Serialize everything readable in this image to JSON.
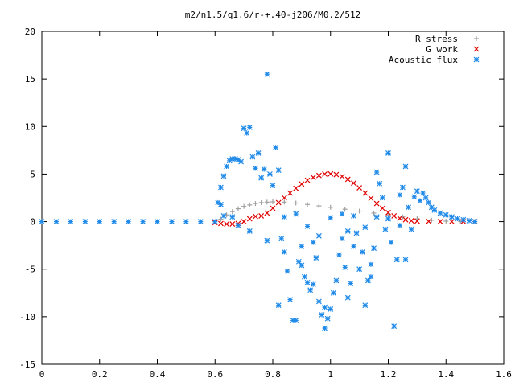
{
  "chart_data": {
    "type": "scatter",
    "title": "m2/n1.5/q1.6/r-+.40-j206/M0.2/512",
    "xlabel": "",
    "ylabel": "",
    "xlim": [
      0,
      1.6
    ],
    "ylim": [
      -15,
      20
    ],
    "xticks": [
      0,
      0.2,
      0.4,
      0.6,
      0.8,
      1,
      1.2,
      1.4,
      1.6
    ],
    "yticks": [
      -15,
      -10,
      -5,
      0,
      5,
      10,
      15,
      20
    ],
    "xtick_labels": [
      "0",
      "0.2",
      "0.4",
      "0.6",
      "0.8",
      "1",
      "1.2",
      "1.4",
      "1.6"
    ],
    "ytick_labels": [
      "-15",
      "-10",
      "-5",
      "0",
      "5",
      "10",
      "15",
      "20"
    ],
    "grid": false,
    "legend_position": "top-right",
    "series": [
      {
        "name": "R stress",
        "marker": "plus",
        "color": "#a0a0a0",
        "points": [
          [
            0.62,
            0.25
          ],
          [
            0.64,
            0.7
          ],
          [
            0.66,
            1.05
          ],
          [
            0.68,
            1.35
          ],
          [
            0.7,
            1.6
          ],
          [
            0.72,
            1.75
          ],
          [
            0.74,
            1.9
          ],
          [
            0.76,
            2.0
          ],
          [
            0.78,
            2.05
          ],
          [
            0.8,
            2.08
          ],
          [
            0.84,
            2.05
          ],
          [
            0.88,
            1.95
          ],
          [
            0.92,
            1.8
          ],
          [
            0.96,
            1.65
          ],
          [
            1.0,
            1.5
          ],
          [
            1.05,
            1.3
          ],
          [
            1.1,
            1.1
          ],
          [
            1.15,
            0.9
          ],
          [
            1.2,
            0.7
          ],
          [
            1.25,
            0.5
          ],
          [
            1.3,
            0.3
          ],
          [
            1.35,
            0.15
          ],
          [
            1.4,
            0.05
          ],
          [
            1.45,
            0.02
          ],
          [
            1.5,
            0.0
          ]
        ]
      },
      {
        "name": "G work",
        "marker": "cross",
        "color": "#e00000",
        "points": [
          [
            0.6,
            -0.1
          ],
          [
            0.62,
            -0.2
          ],
          [
            0.64,
            -0.25
          ],
          [
            0.66,
            -0.25
          ],
          [
            0.68,
            -0.2
          ],
          [
            0.7,
            0.0
          ],
          [
            0.72,
            0.3
          ],
          [
            0.74,
            0.55
          ],
          [
            0.76,
            0.6
          ],
          [
            0.78,
            0.9
          ],
          [
            0.8,
            1.4
          ],
          [
            0.82,
            2.0
          ],
          [
            0.84,
            2.5
          ],
          [
            0.86,
            3.0
          ],
          [
            0.88,
            3.5
          ],
          [
            0.9,
            3.95
          ],
          [
            0.92,
            4.35
          ],
          [
            0.94,
            4.65
          ],
          [
            0.96,
            4.85
          ],
          [
            0.98,
            5.0
          ],
          [
            1.0,
            5.02
          ],
          [
            1.02,
            4.95
          ],
          [
            1.04,
            4.75
          ],
          [
            1.06,
            4.45
          ],
          [
            1.08,
            4.05
          ],
          [
            1.1,
            3.55
          ],
          [
            1.12,
            3.0
          ],
          [
            1.14,
            2.45
          ],
          [
            1.16,
            1.9
          ],
          [
            1.18,
            1.4
          ],
          [
            1.2,
            0.95
          ],
          [
            1.22,
            0.6
          ],
          [
            1.24,
            0.35
          ],
          [
            1.26,
            0.2
          ],
          [
            1.28,
            0.1
          ],
          [
            1.3,
            0.05
          ],
          [
            1.34,
            0.02
          ],
          [
            1.38,
            0.0
          ],
          [
            1.42,
            0.0
          ],
          [
            1.46,
            0.0
          ],
          [
            1.5,
            0.0
          ]
        ]
      },
      {
        "name": "Acoustic flux",
        "marker": "star",
        "color": "#1f8ae8",
        "points": [
          [
            0.0,
            0.0
          ],
          [
            0.05,
            0.0
          ],
          [
            0.1,
            0.0
          ],
          [
            0.15,
            0.0
          ],
          [
            0.2,
            0.0
          ],
          [
            0.25,
            0.0
          ],
          [
            0.3,
            0.0
          ],
          [
            0.35,
            0.0
          ],
          [
            0.4,
            0.0
          ],
          [
            0.45,
            0.0
          ],
          [
            0.5,
            0.0
          ],
          [
            0.55,
            0.0
          ],
          [
            0.6,
            0.0
          ],
          [
            0.61,
            2.0
          ],
          [
            0.62,
            3.6
          ],
          [
            0.63,
            4.8
          ],
          [
            0.64,
            5.8
          ],
          [
            0.65,
            6.4
          ],
          [
            0.66,
            6.6
          ],
          [
            0.67,
            6.6
          ],
          [
            0.68,
            6.5
          ],
          [
            0.69,
            6.3
          ],
          [
            0.62,
            1.8
          ],
          [
            0.63,
            0.6
          ],
          [
            0.66,
            0.5
          ],
          [
            0.68,
            -0.4
          ],
          [
            0.7,
            9.8
          ],
          [
            0.71,
            9.3
          ],
          [
            0.72,
            9.9
          ],
          [
            0.73,
            6.8
          ],
          [
            0.74,
            5.6
          ],
          [
            0.75,
            7.2
          ],
          [
            0.76,
            4.6
          ],
          [
            0.77,
            5.5
          ],
          [
            0.78,
            15.5
          ],
          [
            0.79,
            5.0
          ],
          [
            0.8,
            3.8
          ],
          [
            0.81,
            7.8
          ],
          [
            0.82,
            5.4
          ],
          [
            0.83,
            -1.8
          ],
          [
            0.84,
            -3.2
          ],
          [
            0.85,
            -5.2
          ],
          [
            0.86,
            -8.2
          ],
          [
            0.87,
            -10.4
          ],
          [
            0.88,
            -10.4
          ],
          [
            0.89,
            -4.2
          ],
          [
            0.9,
            -2.6
          ],
          [
            0.91,
            -5.8
          ],
          [
            0.92,
            -6.4
          ],
          [
            0.93,
            -7.2
          ],
          [
            0.94,
            -2.2
          ],
          [
            0.95,
            -3.8
          ],
          [
            0.96,
            -8.4
          ],
          [
            0.97,
            -9.8
          ],
          [
            0.98,
            -11.2
          ],
          [
            0.99,
            -10.2
          ],
          [
            1.0,
            -9.2
          ],
          [
            1.01,
            -7.5
          ],
          [
            1.02,
            -6.2
          ],
          [
            1.03,
            -3.5
          ],
          [
            1.04,
            -1.8
          ],
          [
            1.05,
            -4.8
          ],
          [
            1.06,
            -8.0
          ],
          [
            1.07,
            -6.5
          ],
          [
            1.08,
            -2.6
          ],
          [
            1.09,
            -1.2
          ],
          [
            1.1,
            -5.0
          ],
          [
            1.11,
            -3.2
          ],
          [
            1.12,
            -8.8
          ],
          [
            1.13,
            -6.2
          ],
          [
            1.14,
            -4.5
          ],
          [
            1.15,
            -2.8
          ],
          [
            1.16,
            5.2
          ],
          [
            1.17,
            4.0
          ],
          [
            1.18,
            2.5
          ],
          [
            1.19,
            -0.8
          ],
          [
            1.2,
            7.2
          ],
          [
            1.21,
            -2.2
          ],
          [
            1.22,
            -11.0
          ],
          [
            1.23,
            -4.0
          ],
          [
            1.24,
            2.8
          ],
          [
            1.25,
            3.6
          ],
          [
            1.26,
            5.8
          ],
          [
            1.27,
            1.5
          ],
          [
            1.28,
            -0.8
          ],
          [
            1.29,
            2.6
          ],
          [
            1.3,
            3.2
          ],
          [
            1.31,
            2.2
          ],
          [
            1.32,
            3.0
          ],
          [
            1.33,
            2.5
          ],
          [
            1.34,
            2.0
          ],
          [
            1.35,
            1.5
          ],
          [
            1.36,
            1.2
          ],
          [
            1.38,
            0.9
          ],
          [
            1.4,
            0.7
          ],
          [
            1.42,
            0.5
          ],
          [
            1.44,
            0.3
          ],
          [
            1.46,
            0.2
          ],
          [
            1.48,
            0.1
          ],
          [
            1.5,
            0.0
          ],
          [
            0.72,
            -1.0
          ],
          [
            0.78,
            -2.0
          ],
          [
            0.84,
            0.5
          ],
          [
            0.88,
            0.8
          ],
          [
            0.92,
            -0.5
          ],
          [
            0.96,
            -1.5
          ],
          [
            1.0,
            0.4
          ],
          [
            1.04,
            0.8
          ],
          [
            1.08,
            0.6
          ],
          [
            1.12,
            -0.6
          ],
          [
            1.16,
            0.5
          ],
          [
            1.2,
            0.3
          ],
          [
            1.24,
            -0.4
          ],
          [
            0.82,
            -8.8
          ],
          [
            0.9,
            -4.6
          ],
          [
            0.94,
            -6.6
          ],
          [
            0.98,
            -9.0
          ],
          [
            1.06,
            -1.0
          ],
          [
            1.14,
            -5.8
          ],
          [
            1.26,
            -4.0
          ]
        ]
      }
    ]
  }
}
